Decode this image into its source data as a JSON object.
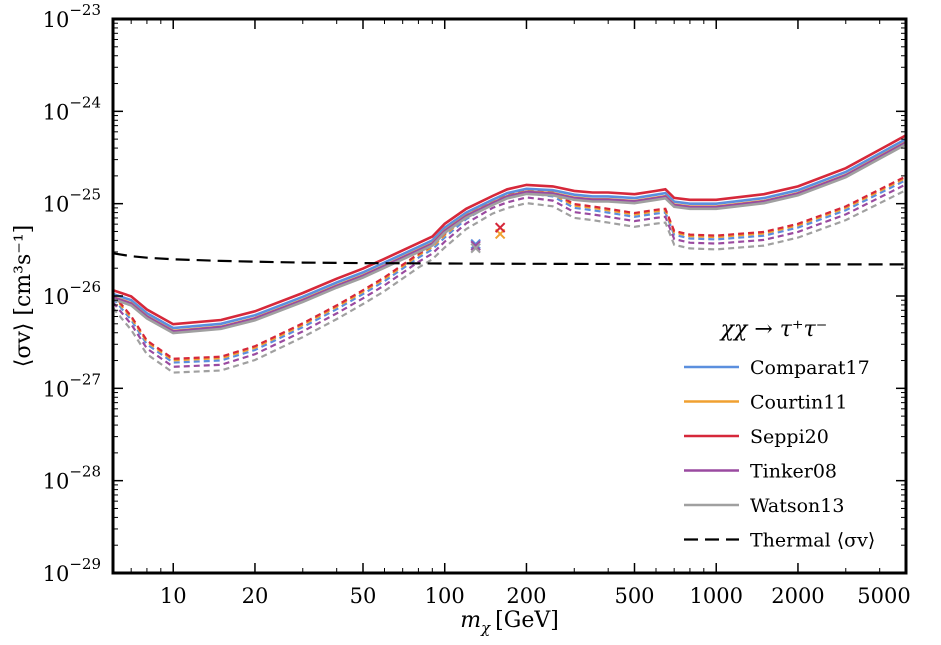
{
  "chart_data": {
    "type": "line",
    "xscale": "log",
    "yscale": "log",
    "xlim": [
      6,
      5000
    ],
    "ylim": [
      1e-29,
      1e-23
    ],
    "xlabel": "m",
    "xlabel_sub": "χ",
    "xlabel_unit": "[GeV]",
    "ylabel": "⟨σv⟩ [cm³s⁻¹]",
    "x_ticks": [
      {
        "value": 10,
        "label": "10"
      },
      {
        "value": 20,
        "label": "20"
      },
      {
        "value": 50,
        "label": "50"
      },
      {
        "value": 100,
        "label": "100"
      },
      {
        "value": 200,
        "label": "200"
      },
      {
        "value": 500,
        "label": "500"
      },
      {
        "value": 1000,
        "label": "1000"
      },
      {
        "value": 2000,
        "label": "2000"
      },
      {
        "value": 5000,
        "label": "5000"
      }
    ],
    "y_ticks": [
      {
        "exp": -29,
        "base": "10",
        "sup": "−29"
      },
      {
        "exp": -28,
        "base": "10",
        "sup": "−28"
      },
      {
        "exp": -27,
        "base": "10",
        "sup": "−27"
      },
      {
        "exp": -26,
        "base": "10",
        "sup": "−26"
      },
      {
        "exp": -25,
        "base": "10",
        "sup": "−25"
      },
      {
        "exp": -24,
        "base": "10",
        "sup": "−24"
      },
      {
        "exp": -23,
        "base": "10",
        "sup": "−23"
      }
    ],
    "legend": {
      "title": "χχ → τ⁺τ⁻",
      "position": "lower-right",
      "entries": [
        {
          "label": "Comparat17",
          "color": "#5b8fde",
          "style": "solid"
        },
        {
          "label": "Courtin11",
          "color": "#f0a030",
          "style": "solid"
        },
        {
          "label": "Seppi20",
          "color": "#d6283a",
          "style": "solid"
        },
        {
          "label": "Tinker08",
          "color": "#9a4aa0",
          "style": "solid"
        },
        {
          "label": "Watson13",
          "color": "#a0a0a0",
          "style": "solid"
        },
        {
          "label": "Thermal ⟨σv⟩",
          "color": "#000000",
          "style": "dashed"
        }
      ]
    },
    "x": [
      6,
      7,
      8,
      10,
      15,
      20,
      30,
      40,
      50,
      60,
      80,
      90,
      100,
      120,
      150,
      170,
      200,
      250,
      300,
      350,
      400,
      500,
      600,
      650,
      700,
      800,
      1000,
      1500,
      2000,
      3000,
      5000
    ],
    "base_solid": [
      1.05e-26,
      9e-27,
      6.5e-27,
      4.5e-27,
      5e-27,
      6.2e-27,
      9.8e-27,
      1.4e-26,
      1.8e-26,
      2.3e-26,
      3.4e-26,
      4e-26,
      5.5e-26,
      8e-26,
      1.1e-25,
      1.3e-25,
      1.45e-25,
      1.4e-25,
      1.25e-25,
      1.2e-25,
      1.2e-25,
      1.15e-25,
      1.25e-25,
      1.3e-25,
      1.05e-25,
      1e-25,
      1e-25,
      1.15e-25,
      1.4e-25,
      2.2e-25,
      5e-25
    ],
    "base_dashed": [
      9.5e-27,
      5.5e-27,
      3e-27,
      1.9e-27,
      2e-27,
      2.6e-27,
      4.6e-27,
      7.2e-27,
      1.05e-26,
      1.45e-26,
      2.6e-26,
      3.2e-26,
      4.3e-26,
      6.8e-26,
      1e-25,
      1.15e-25,
      1.3e-25,
      1.2e-25,
      9e-26,
      8.5e-26,
      8e-26,
      7.2e-26,
      7.8e-26,
      8e-26,
      4.6e-26,
      4.2e-26,
      4.1e-26,
      4.5e-26,
      5.5e-26,
      8.5e-26,
      1.8e-25
    ],
    "series": [
      {
        "name": "Comparat17",
        "color": "#5b8fde",
        "factor_solid": 1.0,
        "factor_dashed": 1.0,
        "marker": {
          "x": 130,
          "y": 3.65e-26
        }
      },
      {
        "name": "Courtin11",
        "color": "#f0a030",
        "factor_solid": 0.93,
        "factor_dashed": 1.06,
        "marker": {
          "x": 160,
          "y": 4.7e-26
        }
      },
      {
        "name": "Seppi20",
        "color": "#d6283a",
        "factor_solid": 1.1,
        "factor_dashed": 1.1,
        "marker": {
          "x": 160,
          "y": 5.5e-26
        }
      },
      {
        "name": "Tinker08",
        "color": "#9a4aa0",
        "factor_solid": 0.92,
        "factor_dashed": 0.9,
        "marker": {
          "x": 130,
          "y": 3.5e-26
        }
      },
      {
        "name": "Watson13",
        "color": "#a0a0a0",
        "factor_solid": 0.88,
        "factor_dashed": 0.78,
        "marker": {
          "x": 130,
          "y": 3.3e-26
        }
      }
    ],
    "thermal": {
      "name": "Thermal ⟨σv⟩",
      "x": [
        6,
        7,
        8,
        10,
        15,
        20,
        30,
        50,
        100,
        200,
        500,
        1000,
        2000,
        5000
      ],
      "y": [
        2.9e-26,
        2.7e-26,
        2.6e-26,
        2.5e-26,
        2.4e-26,
        2.35e-26,
        2.3e-26,
        2.27e-26,
        2.25e-26,
        2.23e-26,
        2.22e-26,
        2.21e-26,
        2.2e-26,
        2.2e-26
      ]
    }
  }
}
